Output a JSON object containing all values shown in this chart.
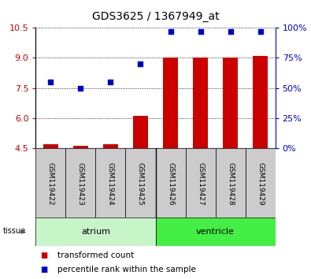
{
  "title": "GDS3625 / 1367949_at",
  "samples": [
    "GSM119422",
    "GSM119423",
    "GSM119424",
    "GSM119425",
    "GSM119426",
    "GSM119427",
    "GSM119428",
    "GSM119429"
  ],
  "transformed_count": [
    4.7,
    4.6,
    4.7,
    6.1,
    9.0,
    9.0,
    9.0,
    9.1
  ],
  "percentile_rank_pct": [
    55,
    50,
    55,
    70,
    97,
    97,
    97,
    97
  ],
  "ylim_left": [
    4.5,
    10.5
  ],
  "yticks_left": [
    4.5,
    6.0,
    7.5,
    9.0,
    10.5
  ],
  "yticks_right_pct": [
    0,
    25,
    50,
    75,
    100
  ],
  "tissue_groups": [
    {
      "label": "atrium",
      "span": 4,
      "color": "#c8f5c8"
    },
    {
      "label": "ventricle",
      "span": 4,
      "color": "#44ee44"
    }
  ],
  "bar_color": "#cc0000",
  "dot_color": "#0000cc",
  "bar_width": 0.5,
  "grid_color": "#000000",
  "bg_color": "#ffffff",
  "tick_label_color_left": "#cc0000",
  "tick_label_color_right": "#0000cc",
  "xlabel_area_color": "#cccccc",
  "legend_items": [
    "transformed count",
    "percentile rank within the sample"
  ],
  "title_fontsize": 10,
  "tick_fontsize": 8,
  "sample_fontsize": 6.5,
  "tissue_fontsize": 8,
  "legend_fontsize": 7.5
}
